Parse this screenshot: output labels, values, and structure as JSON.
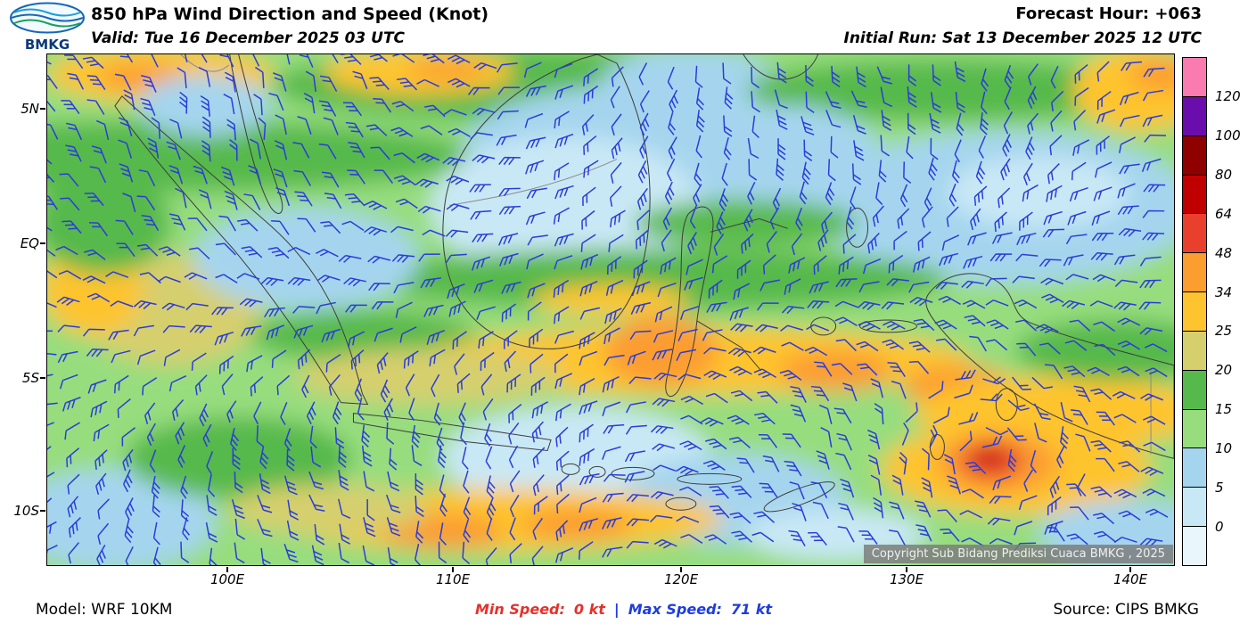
{
  "header": {
    "logo_text": "BMKG",
    "title": "850 hPa Wind Direction and Speed (Knot)",
    "forecast_hour": "Forecast Hour: +063",
    "valid": "Valid: Tue 16 December 2025 03 UTC",
    "initial_run": "Initial Run: Sat 13 December 2025 12 UTC"
  },
  "axes": {
    "y_labels": [
      "5N",
      "EQ",
      "5S",
      "10S"
    ],
    "x_labels": [
      "100E",
      "110E",
      "120E",
      "130E",
      "140E"
    ]
  },
  "legend": {
    "tick_labels": [
      "120",
      "100",
      "80",
      "64",
      "48",
      "34",
      "25",
      "20",
      "15",
      "10",
      "5",
      "0"
    ],
    "segment_colors_top_to_bottom": [
      "#f97bb0",
      "#6a0dad",
      "#8f0000",
      "#c00000",
      "#e8402d",
      "#fc9d30",
      "#fec42f",
      "#d6cf6e",
      "#56b94c",
      "#97dd7e",
      "#a5d5ee",
      "#c9e8f5",
      "#e9f6fc"
    ],
    "band_colors": {
      "0-5": "#c9e8f5",
      "5-10": "#a5d5ee",
      "10-15": "#97dd7e",
      "15-20": "#56b94c",
      "20-25": "#d6cf6e",
      "25-34": "#fec42f",
      "34-48": "#fc9d30",
      "48-64": "#e8402d",
      "64-80": "#c00000"
    }
  },
  "map": {
    "copyright": "Copyright Sub Bidang Prediksi Cuaca BMKG , 2025",
    "barb_color": "#2a3cdb",
    "coastline_color": "#3c3c3c"
  },
  "footer": {
    "model": "Model: WRF 10KM",
    "min_speed_label": "Min Speed:",
    "min_speed_value": "0 kt",
    "separator": "|",
    "max_speed_label": "Max Speed:",
    "max_speed_value": "71 kt",
    "source": "Source: CIPS BMKG"
  },
  "chart_data": {
    "type": "heatmap",
    "title": "850 hPa Wind Direction and Speed (Knot)",
    "units": "kt",
    "level_hPa": 850,
    "forecast_hour": 63,
    "valid_time": "Tue 16 December 2025 03 UTC",
    "initial_run": "Sat 13 December 2025 12 UTC",
    "model": "WRF 10KM",
    "source": "CIPS BMKG",
    "min_speed_kt": 0,
    "max_speed_kt": 71,
    "lon_range_deg_east": [
      92,
      142.2
    ],
    "lat_range_deg_north": [
      -12,
      7.1
    ],
    "x_ticks": [
      "100E",
      "110E",
      "120E",
      "130E",
      "140E"
    ],
    "y_ticks": [
      "5N",
      "EQ",
      "5S",
      "10S"
    ],
    "speed_bounds_kt": [
      0,
      5,
      10,
      15,
      20,
      25,
      34,
      48,
      64,
      80,
      100,
      120
    ],
    "base_band": "10-15",
    "regions": [
      {
        "band": "15-20",
        "x": 0.1,
        "y": 0.2,
        "rx": 0.28,
        "ry": 0.07
      },
      {
        "band": "15-20",
        "x": 0.42,
        "y": 0.06,
        "rx": 0.22,
        "ry": 0.07
      },
      {
        "band": "25-34",
        "x": 0.1,
        "y": 0.04,
        "rx": 0.1,
        "ry": 0.055
      },
      {
        "band": "34-48",
        "x": 0.085,
        "y": 0.045,
        "rx": 0.04,
        "ry": 0.025
      },
      {
        "band": "25-34",
        "x": 0.33,
        "y": 0.035,
        "rx": 0.085,
        "ry": 0.045
      },
      {
        "band": "34-48",
        "x": 0.355,
        "y": 0.03,
        "rx": 0.035,
        "ry": 0.02
      },
      {
        "band": "5-10",
        "x": 0.52,
        "y": 0.18,
        "rx": 0.15,
        "ry": 0.12
      },
      {
        "band": "0-5",
        "x": 0.46,
        "y": 0.3,
        "rx": 0.12,
        "ry": 0.14
      },
      {
        "band": "5-10",
        "x": 0.57,
        "y": 0.06,
        "rx": 0.08,
        "ry": 0.07
      },
      {
        "band": "5-10",
        "x": 0.14,
        "y": 0.1,
        "rx": 0.06,
        "ry": 0.06
      },
      {
        "band": "15-20",
        "x": 0.8,
        "y": 0.07,
        "rx": 0.18,
        "ry": 0.06
      },
      {
        "band": "25-34",
        "x": 0.97,
        "y": 0.07,
        "rx": 0.06,
        "ry": 0.08
      },
      {
        "band": "34-48",
        "x": 0.99,
        "y": 0.04,
        "rx": 0.03,
        "ry": 0.03
      },
      {
        "band": "5-10",
        "x": 0.85,
        "y": 0.3,
        "rx": 0.17,
        "ry": 0.15
      },
      {
        "band": "0-5",
        "x": 0.88,
        "y": 0.27,
        "rx": 0.08,
        "ry": 0.07
      },
      {
        "band": "5-10",
        "x": 0.66,
        "y": 0.2,
        "rx": 0.08,
        "ry": 0.1
      },
      {
        "band": "15-20",
        "x": 0.54,
        "y": 0.44,
        "rx": 0.26,
        "ry": 0.06
      },
      {
        "band": "15-20",
        "x": 0.62,
        "y": 0.33,
        "rx": 0.1,
        "ry": 0.045
      },
      {
        "band": "20-25",
        "x": 0.11,
        "y": 0.5,
        "rx": 0.08,
        "ry": 0.11
      },
      {
        "band": "25-34",
        "x": 0.04,
        "y": 0.46,
        "rx": 0.045,
        "ry": 0.09
      },
      {
        "band": "5-10",
        "x": 0.23,
        "y": 0.4,
        "rx": 0.1,
        "ry": 0.1
      },
      {
        "band": "15-20",
        "x": 0.05,
        "y": 0.33,
        "rx": 0.06,
        "ry": 0.1
      },
      {
        "band": "25-34",
        "x": 0.5,
        "y": 0.48,
        "rx": 0.07,
        "ry": 0.03
      },
      {
        "band": "15-20",
        "x": 0.28,
        "y": 0.55,
        "rx": 0.1,
        "ry": 0.05
      },
      {
        "band": "25-34",
        "x": 0.57,
        "y": 0.6,
        "rx": 0.25,
        "ry": 0.065
      },
      {
        "band": "34-48",
        "x": 0.545,
        "y": 0.58,
        "rx": 0.05,
        "ry": 0.07
      },
      {
        "band": "34-48",
        "x": 0.7,
        "y": 0.62,
        "rx": 0.05,
        "ry": 0.04
      },
      {
        "band": "34-48",
        "x": 0.81,
        "y": 0.65,
        "rx": 0.05,
        "ry": 0.04
      },
      {
        "band": "25-34",
        "x": 0.9,
        "y": 0.7,
        "rx": 0.13,
        "ry": 0.07
      },
      {
        "band": "20-25",
        "x": 0.34,
        "y": 0.63,
        "rx": 0.12,
        "ry": 0.055
      },
      {
        "band": "0-5",
        "x": 0.47,
        "y": 0.79,
        "rx": 0.12,
        "ry": 0.1
      },
      {
        "band": "5-10",
        "x": 0.61,
        "y": 0.87,
        "rx": 0.1,
        "ry": 0.09
      },
      {
        "band": "25-34",
        "x": 0.4,
        "y": 0.91,
        "rx": 0.2,
        "ry": 0.06
      },
      {
        "band": "34-48",
        "x": 0.35,
        "y": 0.935,
        "rx": 0.055,
        "ry": 0.035
      },
      {
        "band": "34-48",
        "x": 0.47,
        "y": 0.92,
        "rx": 0.05,
        "ry": 0.03
      },
      {
        "band": "5-10",
        "x": 0.06,
        "y": 0.91,
        "rx": 0.09,
        "ry": 0.1
      },
      {
        "band": "15-20",
        "x": 0.17,
        "y": 0.79,
        "rx": 0.1,
        "ry": 0.08
      },
      {
        "band": "20-25",
        "x": 0.25,
        "y": 0.89,
        "rx": 0.09,
        "ry": 0.05
      },
      {
        "band": "15-20",
        "x": 0.95,
        "y": 0.58,
        "rx": 0.09,
        "ry": 0.06
      },
      {
        "band": "25-34",
        "x": 0.86,
        "y": 0.81,
        "rx": 0.12,
        "ry": 0.09
      },
      {
        "band": "34-48",
        "x": 0.843,
        "y": 0.8,
        "rx": 0.055,
        "ry": 0.06
      },
      {
        "band": "48-64",
        "x": 0.838,
        "y": 0.795,
        "rx": 0.028,
        "ry": 0.035
      },
      {
        "band": "64-80",
        "x": 0.836,
        "y": 0.79,
        "rx": 0.013,
        "ry": 0.017
      },
      {
        "band": "5-10",
        "x": 0.96,
        "y": 0.94,
        "rx": 0.08,
        "ry": 0.07
      },
      {
        "band": "0-5",
        "x": 0.7,
        "y": 0.94,
        "rx": 0.08,
        "ry": 0.05
      }
    ]
  }
}
